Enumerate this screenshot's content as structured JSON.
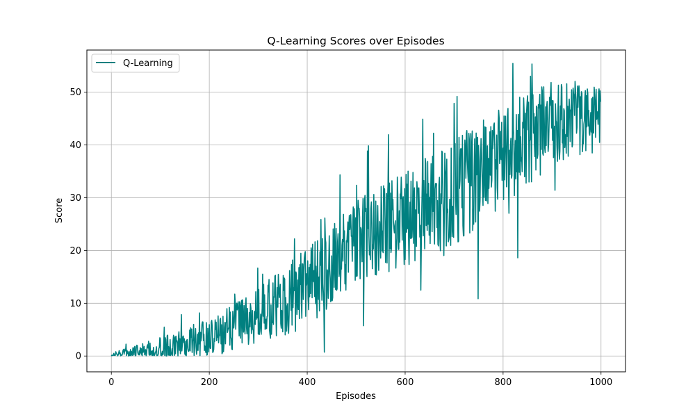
{
  "chart_data": {
    "type": "line",
    "title": "Q-Learning Scores over Episodes",
    "xlabel": "Episodes",
    "ylabel": "Score",
    "xlim": [
      -50,
      1050
    ],
    "ylim": [
      -3,
      58
    ],
    "xticks": [
      0,
      200,
      400,
      600,
      800,
      1000
    ],
    "yticks": [
      0,
      10,
      20,
      30,
      40,
      50
    ],
    "grid": true,
    "legend": "top-left",
    "series": [
      {
        "name": "Q-Learning",
        "color": "#008080",
        "episodes": 1000,
        "trend": [
          [
            0,
            0.2
          ],
          [
            100,
            1.0
          ],
          [
            200,
            3.5
          ],
          [
            300,
            7.5
          ],
          [
            400,
            13
          ],
          [
            500,
            22
          ],
          [
            600,
            26
          ],
          [
            700,
            31
          ],
          [
            800,
            38
          ],
          [
            900,
            44
          ],
          [
            1000,
            45
          ]
        ],
        "noise": [
          [
            0,
            0.6
          ],
          [
            100,
            2.5
          ],
          [
            200,
            3.5
          ],
          [
            300,
            5.5
          ],
          [
            400,
            7.5
          ],
          [
            500,
            8
          ],
          [
            600,
            9
          ],
          [
            700,
            10
          ],
          [
            800,
            10
          ],
          [
            900,
            8
          ],
          [
            1000,
            6
          ]
        ]
      }
    ]
  }
}
